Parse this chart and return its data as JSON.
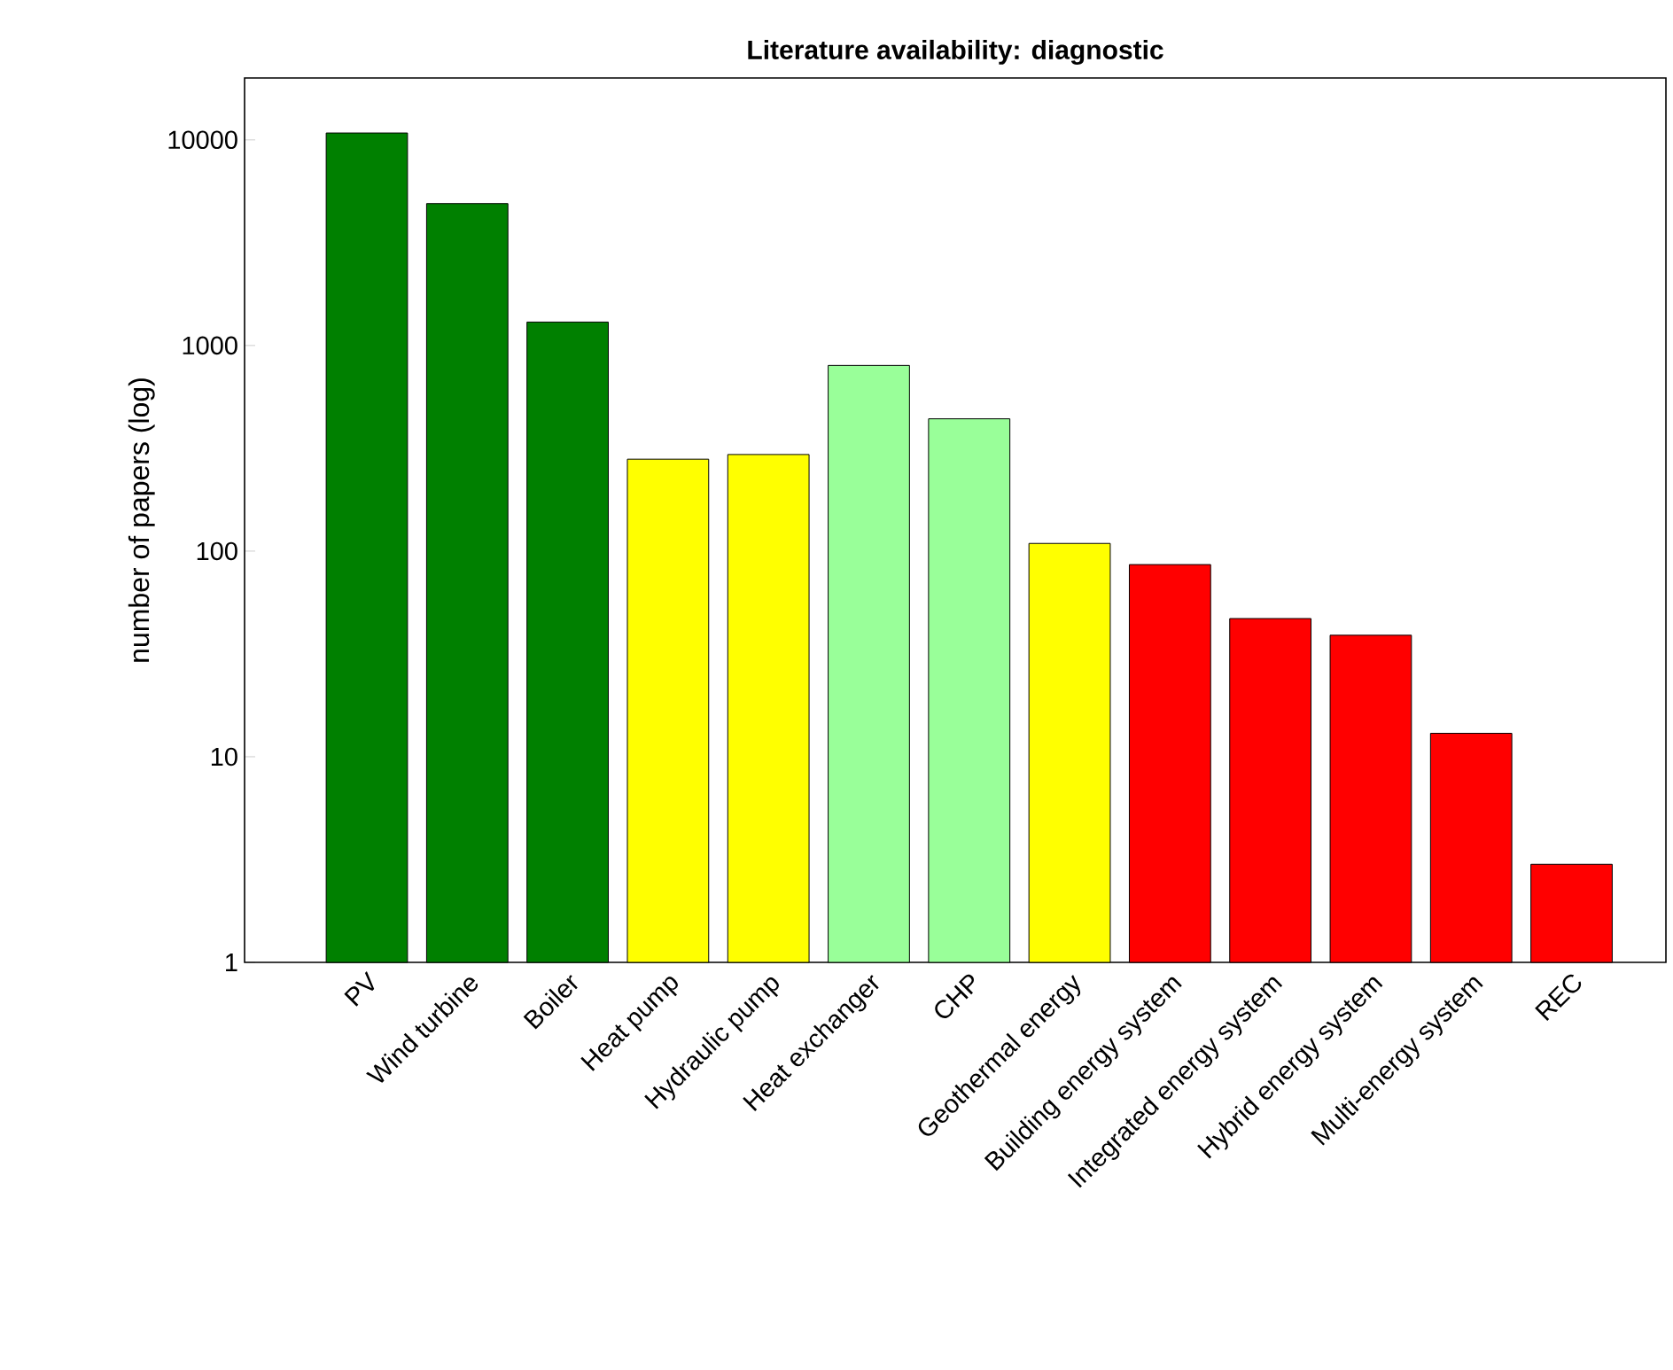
{
  "chart_data": {
    "type": "bar",
    "title": "Literature availability: diagnostic",
    "ylabel": "number of papers (log)",
    "categories": [
      "PV",
      "Wind turbine",
      "Boiler",
      "Heat pump",
      "Hydraulic pump",
      "Heat exchanger",
      "CHP",
      "Geothermal energy",
      "Building energy system",
      "Integrated energy system",
      "Hybrid energy system",
      "Multi-energy system",
      "REC"
    ],
    "values": [
      10800,
      4900,
      1300,
      280,
      295,
      800,
      440,
      109,
      86,
      47,
      39,
      13,
      3
    ],
    "colors": [
      "#008000",
      "#008000",
      "#008000",
      "#ffff00",
      "#ffff00",
      "#99ff99",
      "#99ff99",
      "#ffff00",
      "#ff0000",
      "#ff0000",
      "#ff0000",
      "#ff0000",
      "#ff0000"
    ],
    "ylim": [
      1,
      20000
    ],
    "yticks": [
      1,
      10,
      100,
      1000,
      10000
    ],
    "log": "y"
  }
}
